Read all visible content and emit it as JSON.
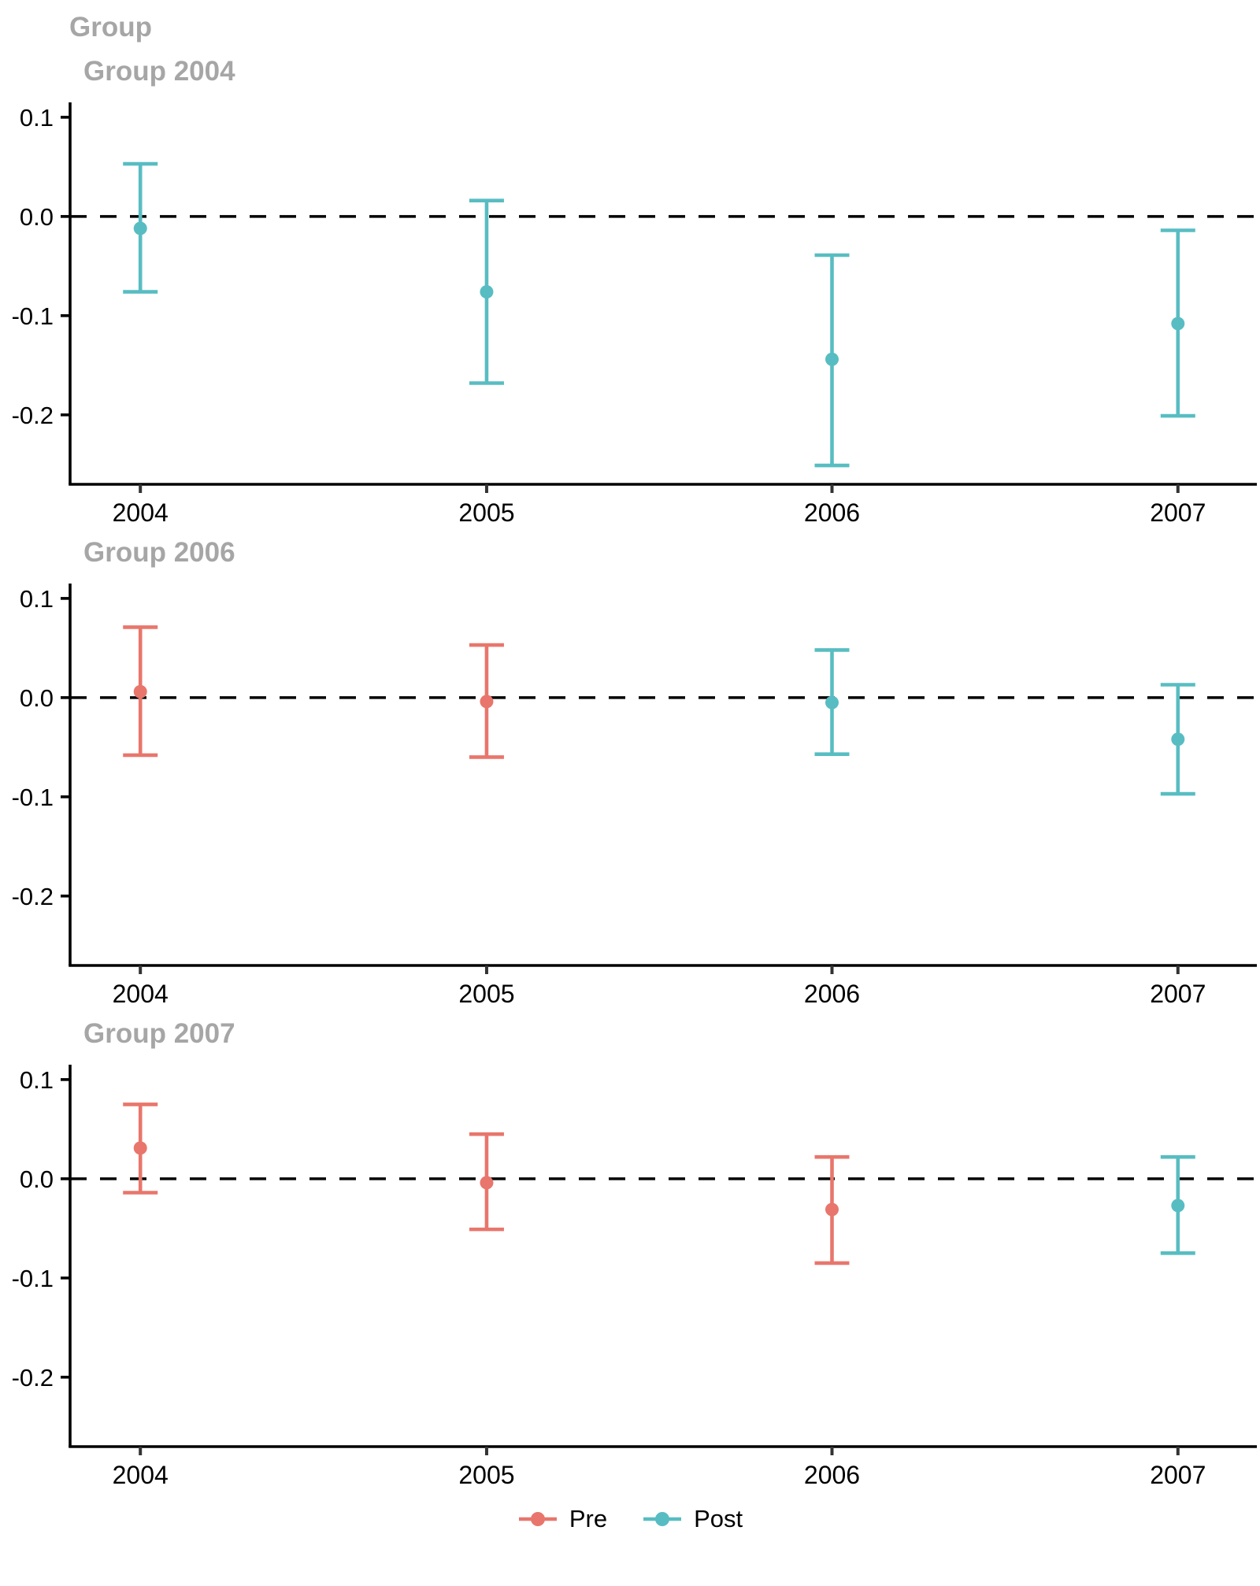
{
  "page": {
    "title": "Group",
    "background": "#ffffff"
  },
  "colors": {
    "pre": "#E8766C",
    "post": "#58BDC2",
    "title_gray": "#A6A6A6",
    "axis": "#000000",
    "zero_line": "#000000"
  },
  "legend": {
    "items": [
      {
        "label": "Pre",
        "series": "pre"
      },
      {
        "label": "Post",
        "series": "post"
      }
    ]
  },
  "chart_data": [
    {
      "type": "errorbar",
      "panel_title": "Group 2004",
      "x_ticklabels": [
        "2004",
        "2005",
        "2006",
        "2007"
      ],
      "y_ticks": [
        {
          "value": 0.1,
          "label": "0.1"
        },
        {
          "value": 0.0,
          "label": "0.0"
        },
        {
          "value": -0.1,
          "label": "-0.1"
        },
        {
          "value": -0.2,
          "label": "-0.2"
        }
      ],
      "ylim": [
        -0.27,
        0.115
      ],
      "zero_line_dashed": true,
      "points": [
        {
          "x": "2004",
          "series": "post",
          "est": -0.012,
          "lo": -0.076,
          "hi": 0.053
        },
        {
          "x": "2005",
          "series": "post",
          "est": -0.076,
          "lo": -0.168,
          "hi": 0.016
        },
        {
          "x": "2006",
          "series": "post",
          "est": -0.144,
          "lo": -0.251,
          "hi": -0.039
        },
        {
          "x": "2007",
          "series": "post",
          "est": -0.108,
          "lo": -0.201,
          "hi": -0.014
        }
      ]
    },
    {
      "type": "errorbar",
      "panel_title": "Group 2006",
      "x_ticklabels": [
        "2004",
        "2005",
        "2006",
        "2007"
      ],
      "y_ticks": [
        {
          "value": 0.1,
          "label": "0.1"
        },
        {
          "value": 0.0,
          "label": "0.0"
        },
        {
          "value": -0.1,
          "label": "-0.1"
        },
        {
          "value": -0.2,
          "label": "-0.2"
        }
      ],
      "ylim": [
        -0.27,
        0.115
      ],
      "zero_line_dashed": true,
      "points": [
        {
          "x": "2004",
          "series": "pre",
          "est": 0.006,
          "lo": -0.058,
          "hi": 0.071
        },
        {
          "x": "2005",
          "series": "pre",
          "est": -0.004,
          "lo": -0.06,
          "hi": 0.053
        },
        {
          "x": "2006",
          "series": "post",
          "est": -0.005,
          "lo": -0.057,
          "hi": 0.048
        },
        {
          "x": "2007",
          "series": "post",
          "est": -0.042,
          "lo": -0.097,
          "hi": 0.013
        }
      ]
    },
    {
      "type": "errorbar",
      "panel_title": "Group 2007",
      "x_ticklabels": [
        "2004",
        "2005",
        "2006",
        "2007"
      ],
      "y_ticks": [
        {
          "value": 0.1,
          "label": "0.1"
        },
        {
          "value": 0.0,
          "label": "0.0"
        },
        {
          "value": -0.1,
          "label": "-0.1"
        },
        {
          "value": -0.2,
          "label": "-0.2"
        }
      ],
      "ylim": [
        -0.27,
        0.115
      ],
      "zero_line_dashed": true,
      "points": [
        {
          "x": "2004",
          "series": "pre",
          "est": 0.031,
          "lo": -0.014,
          "hi": 0.075
        },
        {
          "x": "2005",
          "series": "pre",
          "est": -0.004,
          "lo": -0.051,
          "hi": 0.045
        },
        {
          "x": "2006",
          "series": "pre",
          "est": -0.031,
          "lo": -0.085,
          "hi": 0.022
        },
        {
          "x": "2007",
          "series": "post",
          "est": -0.027,
          "lo": -0.075,
          "hi": 0.022
        }
      ]
    }
  ]
}
